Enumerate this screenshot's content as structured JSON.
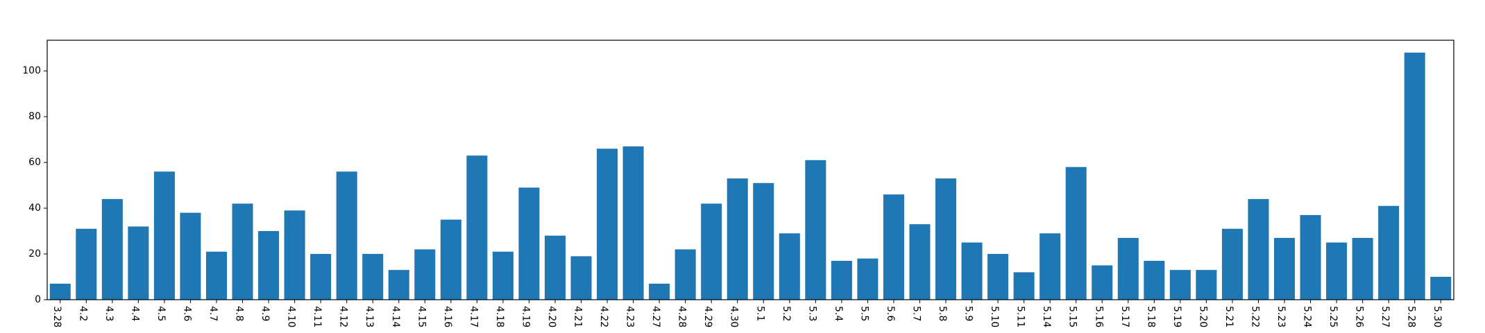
{
  "chart_data": {
    "type": "bar",
    "categories": [
      "3.28",
      "4.2",
      "4.3",
      "4.4",
      "4.5",
      "4.6",
      "4.7",
      "4.8",
      "4.9",
      "4.10",
      "4.11",
      "4.12",
      "4.13",
      "4.14",
      "4.15",
      "4.16",
      "4.17",
      "4.18",
      "4.19",
      "4.20",
      "4.21",
      "4.22",
      "4.23",
      "4.27",
      "4.28",
      "4.29",
      "4.30",
      "5.1",
      "5.2",
      "5.3",
      "5.4",
      "5.5",
      "5.6",
      "5.7",
      "5.8",
      "5.9",
      "5.10",
      "5.11",
      "5.14",
      "5.15",
      "5.16",
      "5.17",
      "5.18",
      "5.19",
      "5.20",
      "5.21",
      "5.22",
      "5.23",
      "5.24",
      "5.25",
      "5.26",
      "5.27",
      "5.28",
      "5.30"
    ],
    "values": [
      7,
      31,
      44,
      32,
      56,
      38,
      21,
      42,
      30,
      39,
      20,
      56,
      20,
      13,
      22,
      35,
      63,
      21,
      49,
      28,
      19,
      66,
      67,
      7,
      22,
      42,
      53,
      51,
      29,
      61,
      17,
      18,
      46,
      33,
      53,
      25,
      20,
      12,
      29,
      58,
      15,
      27,
      17,
      13,
      13,
      31,
      44,
      27,
      37,
      25,
      27,
      41,
      108,
      10
    ],
    "title": "",
    "xlabel": "",
    "ylabel": "",
    "ylim": [
      0,
      113.4
    ],
    "yticks": [
      0,
      20,
      40,
      60,
      80,
      100
    ],
    "bar_color": "#1f77b4",
    "grid": false,
    "legend": "none"
  }
}
